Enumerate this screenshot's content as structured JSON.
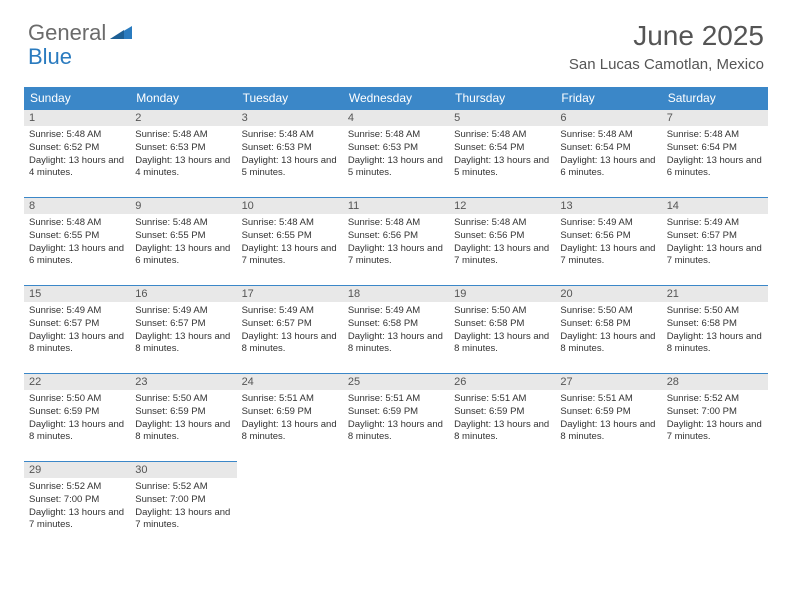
{
  "brand": {
    "part1": "General",
    "part2": "Blue"
  },
  "title": "June 2025",
  "location": "San Lucas Camotlan, Mexico",
  "colors": {
    "header_bg": "#3b87c8",
    "header_text": "#ffffff",
    "daynum_bg": "#e8e8e8",
    "border": "#3b87c8",
    "logo_gray": "#6b6b6b",
    "logo_blue": "#2a7bbf"
  },
  "weekdays": [
    "Sunday",
    "Monday",
    "Tuesday",
    "Wednesday",
    "Thursday",
    "Friday",
    "Saturday"
  ],
  "days": [
    {
      "n": 1,
      "sunrise": "5:48 AM",
      "sunset": "6:52 PM",
      "daylight": "13 hours and 4 minutes."
    },
    {
      "n": 2,
      "sunrise": "5:48 AM",
      "sunset": "6:53 PM",
      "daylight": "13 hours and 4 minutes."
    },
    {
      "n": 3,
      "sunrise": "5:48 AM",
      "sunset": "6:53 PM",
      "daylight": "13 hours and 5 minutes."
    },
    {
      "n": 4,
      "sunrise": "5:48 AM",
      "sunset": "6:53 PM",
      "daylight": "13 hours and 5 minutes."
    },
    {
      "n": 5,
      "sunrise": "5:48 AM",
      "sunset": "6:54 PM",
      "daylight": "13 hours and 5 minutes."
    },
    {
      "n": 6,
      "sunrise": "5:48 AM",
      "sunset": "6:54 PM",
      "daylight": "13 hours and 6 minutes."
    },
    {
      "n": 7,
      "sunrise": "5:48 AM",
      "sunset": "6:54 PM",
      "daylight": "13 hours and 6 minutes."
    },
    {
      "n": 8,
      "sunrise": "5:48 AM",
      "sunset": "6:55 PM",
      "daylight": "13 hours and 6 minutes."
    },
    {
      "n": 9,
      "sunrise": "5:48 AM",
      "sunset": "6:55 PM",
      "daylight": "13 hours and 6 minutes."
    },
    {
      "n": 10,
      "sunrise": "5:48 AM",
      "sunset": "6:55 PM",
      "daylight": "13 hours and 7 minutes."
    },
    {
      "n": 11,
      "sunrise": "5:48 AM",
      "sunset": "6:56 PM",
      "daylight": "13 hours and 7 minutes."
    },
    {
      "n": 12,
      "sunrise": "5:48 AM",
      "sunset": "6:56 PM",
      "daylight": "13 hours and 7 minutes."
    },
    {
      "n": 13,
      "sunrise": "5:49 AM",
      "sunset": "6:56 PM",
      "daylight": "13 hours and 7 minutes."
    },
    {
      "n": 14,
      "sunrise": "5:49 AM",
      "sunset": "6:57 PM",
      "daylight": "13 hours and 7 minutes."
    },
    {
      "n": 15,
      "sunrise": "5:49 AM",
      "sunset": "6:57 PM",
      "daylight": "13 hours and 8 minutes."
    },
    {
      "n": 16,
      "sunrise": "5:49 AM",
      "sunset": "6:57 PM",
      "daylight": "13 hours and 8 minutes."
    },
    {
      "n": 17,
      "sunrise": "5:49 AM",
      "sunset": "6:57 PM",
      "daylight": "13 hours and 8 minutes."
    },
    {
      "n": 18,
      "sunrise": "5:49 AM",
      "sunset": "6:58 PM",
      "daylight": "13 hours and 8 minutes."
    },
    {
      "n": 19,
      "sunrise": "5:50 AM",
      "sunset": "6:58 PM",
      "daylight": "13 hours and 8 minutes."
    },
    {
      "n": 20,
      "sunrise": "5:50 AM",
      "sunset": "6:58 PM",
      "daylight": "13 hours and 8 minutes."
    },
    {
      "n": 21,
      "sunrise": "5:50 AM",
      "sunset": "6:58 PM",
      "daylight": "13 hours and 8 minutes."
    },
    {
      "n": 22,
      "sunrise": "5:50 AM",
      "sunset": "6:59 PM",
      "daylight": "13 hours and 8 minutes."
    },
    {
      "n": 23,
      "sunrise": "5:50 AM",
      "sunset": "6:59 PM",
      "daylight": "13 hours and 8 minutes."
    },
    {
      "n": 24,
      "sunrise": "5:51 AM",
      "sunset": "6:59 PM",
      "daylight": "13 hours and 8 minutes."
    },
    {
      "n": 25,
      "sunrise": "5:51 AM",
      "sunset": "6:59 PM",
      "daylight": "13 hours and 8 minutes."
    },
    {
      "n": 26,
      "sunrise": "5:51 AM",
      "sunset": "6:59 PM",
      "daylight": "13 hours and 8 minutes."
    },
    {
      "n": 27,
      "sunrise": "5:51 AM",
      "sunset": "6:59 PM",
      "daylight": "13 hours and 8 minutes."
    },
    {
      "n": 28,
      "sunrise": "5:52 AM",
      "sunset": "7:00 PM",
      "daylight": "13 hours and 7 minutes."
    },
    {
      "n": 29,
      "sunrise": "5:52 AM",
      "sunset": "7:00 PM",
      "daylight": "13 hours and 7 minutes."
    },
    {
      "n": 30,
      "sunrise": "5:52 AM",
      "sunset": "7:00 PM",
      "daylight": "13 hours and 7 minutes."
    }
  ],
  "labels": {
    "sunrise": "Sunrise:",
    "sunset": "Sunset:",
    "daylight": "Daylight:"
  },
  "layout": {
    "start_weekday": 0,
    "total_cells": 35
  }
}
